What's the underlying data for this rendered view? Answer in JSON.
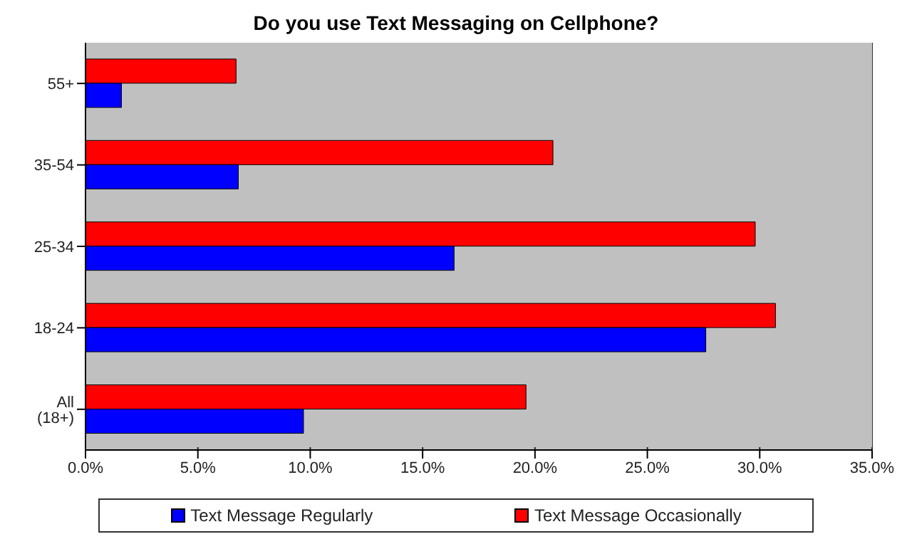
{
  "chart_data": {
    "type": "bar",
    "orientation": "horizontal",
    "title": "Do you use Text Messaging on Cellphone?",
    "categories": [
      "55+",
      "35-54",
      "25-34",
      "18-24",
      "All (18+)"
    ],
    "series": [
      {
        "name": "Text Message Regularly",
        "color": "#0000ff",
        "values": [
          1.6,
          6.8,
          16.4,
          27.6,
          9.7
        ]
      },
      {
        "name": "Text Message Occasionally",
        "color": "#ff0000",
        "values": [
          6.7,
          20.8,
          29.8,
          30.7,
          19.6
        ]
      }
    ],
    "xlim": [
      0,
      35
    ],
    "xticks": [
      {
        "value": 0,
        "label": "0.0%"
      },
      {
        "value": 5,
        "label": "5.0%"
      },
      {
        "value": 10,
        "label": "10.0%"
      },
      {
        "value": 15,
        "label": "15.0%"
      },
      {
        "value": 20,
        "label": "20.0%"
      },
      {
        "value": 25,
        "label": "25.0%"
      },
      {
        "value": 30,
        "label": "30.0%"
      },
      {
        "value": 35,
        "label": "35.0%"
      }
    ],
    "grid": "x",
    "legend": "bottom"
  }
}
